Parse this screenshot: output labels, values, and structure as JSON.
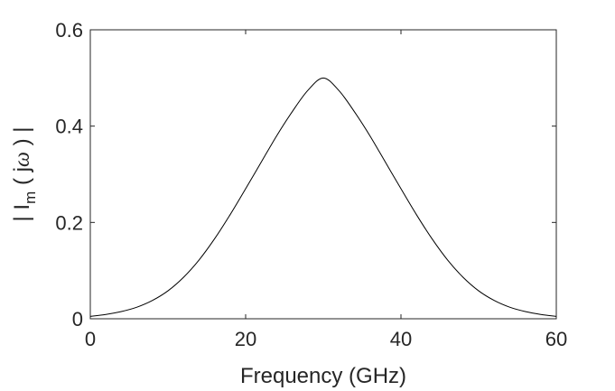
{
  "chart_data": {
    "type": "line",
    "title": "",
    "xlabel": "Frequency (GHz)",
    "ylabel": {
      "prefix": "| I",
      "subscript": "m",
      "middle": " ( j",
      "symbol": "ω",
      "suffix": " ) |"
    },
    "xlim": [
      0,
      60
    ],
    "ylim": [
      0,
      0.6
    ],
    "xticks": [
      0,
      20,
      40,
      60
    ],
    "xtick_labels": [
      "0",
      "20",
      "40",
      "60"
    ],
    "yticks": [
      0,
      0.2,
      0.4,
      0.6
    ],
    "ytick_labels": [
      "0",
      "0.2",
      "0.4",
      "0.6"
    ],
    "grid": false,
    "line_color": "#000000",
    "series": [
      {
        "x": [
          0,
          2,
          4,
          6,
          8,
          10,
          12,
          14,
          16,
          18,
          20,
          22,
          24,
          26,
          28,
          30,
          32,
          34,
          36,
          38,
          40,
          42,
          44,
          46,
          48,
          50,
          52,
          54,
          56,
          58,
          60
        ],
        "y": [
          0.005,
          0.009,
          0.015,
          0.024,
          0.038,
          0.058,
          0.086,
          0.122,
          0.166,
          0.216,
          0.27,
          0.325,
          0.38,
          0.43,
          0.474,
          0.5,
          0.474,
          0.43,
          0.38,
          0.325,
          0.27,
          0.216,
          0.166,
          0.122,
          0.086,
          0.058,
          0.038,
          0.024,
          0.015,
          0.009,
          0.005
        ]
      }
    ]
  }
}
